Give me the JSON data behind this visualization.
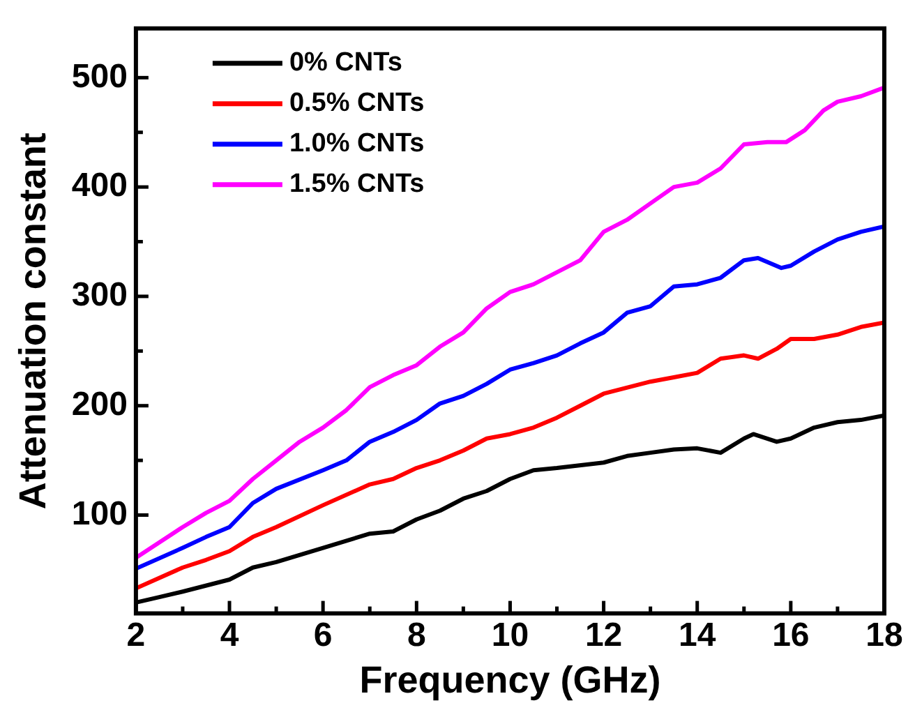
{
  "chart_data": {
    "type": "line",
    "xlabel": "Frequency (GHz)",
    "ylabel": "Attenuation constant",
    "xlim": [
      2,
      18
    ],
    "ylim": [
      10,
      545
    ],
    "xticks": [
      2,
      {
        "value": 3,
        "label": null
      },
      4,
      {
        "value": 5,
        "label": null
      },
      6,
      {
        "value": 7,
        "label": null
      },
      8,
      {
        "value": 9,
        "label": null
      },
      10,
      {
        "value": 11,
        "label": null
      },
      12,
      {
        "value": 13,
        "label": null
      },
      14,
      {
        "value": 15,
        "label": null
      },
      16,
      {
        "value": 17,
        "label": null
      },
      18
    ],
    "yticks": [
      100,
      {
        "value": 150,
        "label": null
      },
      200,
      {
        "value": 250,
        "label": null
      },
      300,
      {
        "value": 350,
        "label": null
      },
      400,
      {
        "value": 450,
        "label": null
      },
      500
    ],
    "legend": "top left",
    "grid": false,
    "marker": "none",
    "line_style": "solid",
    "series": [
      {
        "name": "0% CNTs",
        "color": "#000000",
        "x": [
          2,
          2.5,
          3,
          4,
          4.5,
          5,
          6,
          7,
          7.5,
          8,
          8.5,
          9,
          9.5,
          10,
          10.5,
          11,
          12,
          12.5,
          13,
          13.5,
          14,
          14.5,
          15,
          15.2,
          15.7,
          16,
          16.5,
          17,
          17.5,
          18
        ],
        "values": [
          20,
          25,
          30,
          41,
          52,
          57,
          70,
          83,
          85,
          96,
          104,
          115,
          122,
          133,
          141,
          143,
          148,
          154,
          157,
          160,
          161,
          157,
          170,
          174,
          167,
          170,
          180,
          185,
          187,
          191
        ]
      },
      {
        "name": "0.5% CNTs",
        "color": "#ff0000",
        "x": [
          2,
          3,
          3.5,
          4,
          4.5,
          5,
          6,
          7,
          7.5,
          8,
          8.5,
          9,
          9.5,
          10,
          10.5,
          11,
          11.5,
          12,
          13,
          13.5,
          14,
          14.5,
          15,
          15.3,
          15.7,
          16,
          16.5,
          17,
          17.5,
          18
        ],
        "values": [
          33,
          52,
          59,
          67,
          80,
          89,
          109,
          128,
          133,
          143,
          150,
          159,
          170,
          174,
          180,
          189,
          200,
          211,
          222,
          226,
          230,
          243,
          246,
          243,
          252,
          261,
          261,
          265,
          272,
          276
        ]
      },
      {
        "name": "1.0% CNTs",
        "color": "#0000ff",
        "x": [
          2,
          3,
          3.5,
          4,
          4.5,
          5,
          6,
          6.5,
          7,
          7.5,
          8,
          8.5,
          9,
          9.5,
          10,
          10.5,
          11,
          11.5,
          12,
          12.5,
          13,
          13.5,
          14,
          14.5,
          15,
          15.3,
          15.8,
          16,
          16.5,
          17,
          17.5,
          18
        ],
        "values": [
          51,
          70,
          80,
          89,
          111,
          124,
          141,
          150,
          167,
          176,
          187,
          202,
          209,
          220,
          233,
          239,
          246,
          257,
          267,
          285,
          291,
          309,
          311,
          317,
          333,
          335,
          326,
          328,
          341,
          352,
          359,
          364
        ]
      },
      {
        "name": "1.5% CNTs",
        "color": "#ff00ff",
        "x": [
          2,
          3,
          3.5,
          4,
          4.5,
          5,
          5.5,
          6,
          6.5,
          7,
          7.5,
          8,
          8.5,
          9,
          9.5,
          10,
          10.5,
          11,
          11.5,
          12,
          12.5,
          13,
          13.5,
          14,
          14.5,
          15,
          15.5,
          15.9,
          16.3,
          16.7,
          17,
          17.5,
          18
        ],
        "values": [
          61,
          89,
          102,
          113,
          133,
          150,
          167,
          180,
          196,
          217,
          228,
          237,
          254,
          267,
          289,
          304,
          311,
          322,
          333,
          359,
          370,
          385,
          400,
          404,
          417,
          439,
          441,
          441,
          452,
          470,
          478,
          483,
          491
        ]
      }
    ]
  }
}
